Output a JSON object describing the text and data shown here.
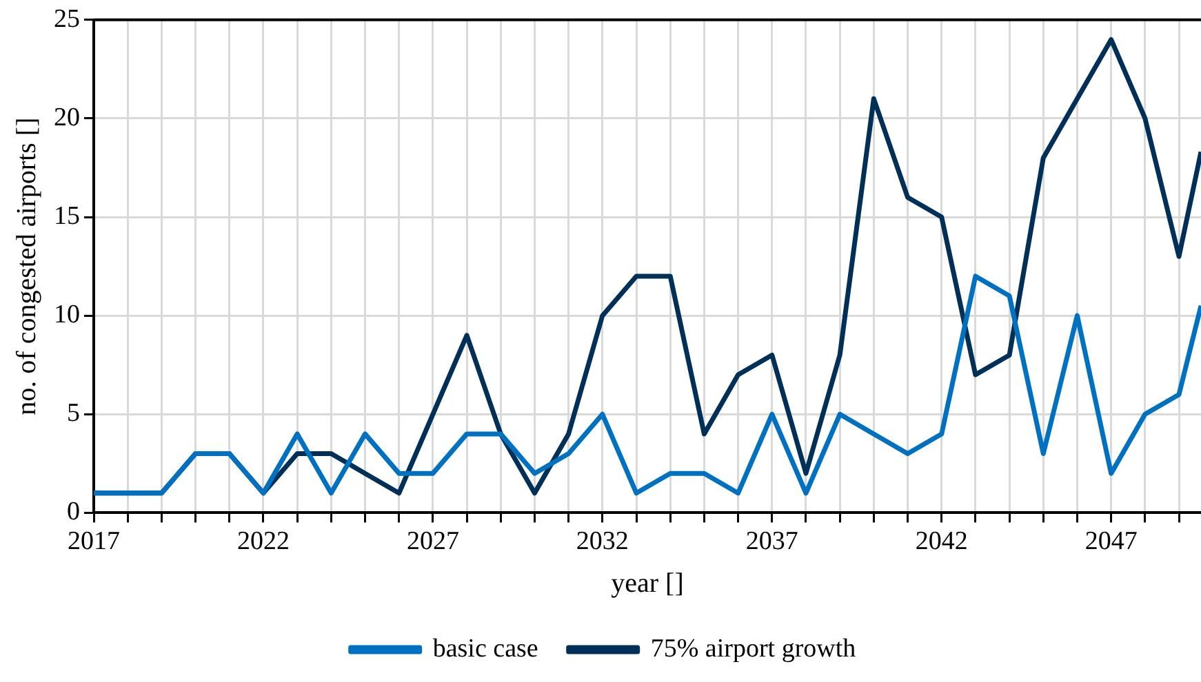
{
  "chart_data": {
    "type": "line",
    "xlabel": "year []",
    "ylabel": "no. of congested airports []",
    "x": [
      2017,
      2018,
      2019,
      2020,
      2021,
      2022,
      2023,
      2024,
      2025,
      2026,
      2027,
      2028,
      2029,
      2030,
      2031,
      2032,
      2033,
      2034,
      2035,
      2036,
      2037,
      2038,
      2039,
      2040,
      2041,
      2042,
      2043,
      2044,
      2045,
      2046,
      2047,
      2048,
      2049,
      2049.65
    ],
    "series": [
      {
        "name": "basic case",
        "color": "#0070c0",
        "values": [
          1,
          1,
          1,
          3,
          3,
          1,
          4,
          1,
          4,
          2,
          2,
          4,
          4,
          2,
          3,
          5,
          1,
          2,
          2,
          1,
          5,
          1,
          5,
          4,
          3,
          4,
          12,
          11,
          3,
          10,
          2,
          5,
          6,
          10.5
        ]
      },
      {
        "name": "75% airport growth",
        "color": "#003057",
        "values": [
          1,
          1,
          1,
          3,
          3,
          1,
          3,
          3,
          2,
          1,
          5,
          9,
          4,
          1,
          4,
          10,
          12,
          12,
          4,
          7,
          8,
          2,
          8,
          21,
          16,
          15,
          7,
          8,
          18,
          21,
          24,
          20,
          13,
          18.3
        ]
      }
    ],
    "xlim": [
      2017,
      2049.65
    ],
    "xticks": [
      2017,
      {
        "value": 2018,
        "label": null
      },
      {
        "value": 2019,
        "label": null
      },
      {
        "value": 2020,
        "label": null
      },
      {
        "value": 2021,
        "label": null
      },
      2022,
      {
        "value": 2023,
        "label": null
      },
      {
        "value": 2024,
        "label": null
      },
      {
        "value": 2025,
        "label": null
      },
      {
        "value": 2026,
        "label": null
      },
      2027,
      {
        "value": 2028,
        "label": null
      },
      {
        "value": 2029,
        "label": null
      },
      {
        "value": 2030,
        "label": null
      },
      {
        "value": 2031,
        "label": null
      },
      2032,
      {
        "value": 2033,
        "label": null
      },
      {
        "value": 2034,
        "label": null
      },
      {
        "value": 2035,
        "label": null
      },
      {
        "value": 2036,
        "label": null
      },
      2037,
      {
        "value": 2038,
        "label": null
      },
      {
        "value": 2039,
        "label": null
      },
      {
        "value": 2040,
        "label": null
      },
      {
        "value": 2041,
        "label": null
      },
      2042,
      {
        "value": 2043,
        "label": null
      },
      {
        "value": 2044,
        "label": null
      },
      {
        "value": 2045,
        "label": null
      },
      {
        "value": 2046,
        "label": null
      },
      2047,
      {
        "value": 2048,
        "label": null
      },
      {
        "value": 2049,
        "label": null
      }
    ],
    "ylim": [
      0,
      25
    ],
    "yticks": [
      0,
      5,
      10,
      15,
      20,
      25
    ],
    "grid": true,
    "legend": "bottom",
    "marker": "none",
    "line_style": "solid"
  }
}
